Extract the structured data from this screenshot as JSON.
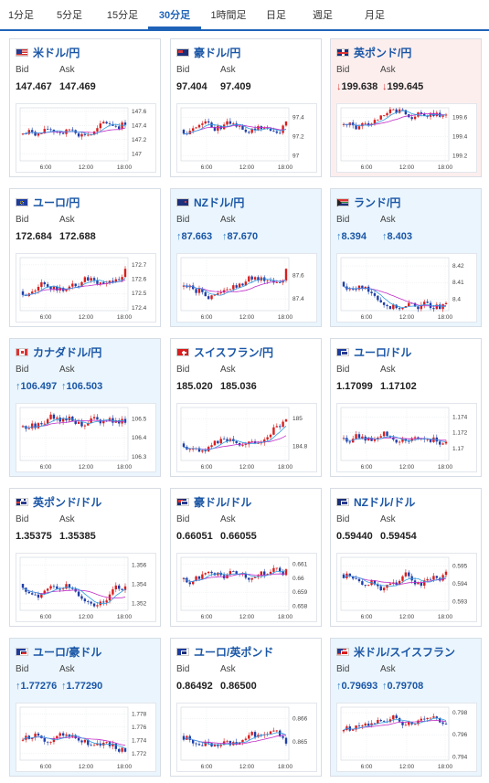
{
  "tabs": [
    "1分足",
    "5分足",
    "15分足",
    "30分足",
    "1時間足",
    "日足",
    "週足",
    "月足"
  ],
  "active_tab": 3,
  "bid_label": "Bid",
  "ask_label": "Ask",
  "x_ticks": [
    "6:00",
    "12:00",
    "18:00"
  ],
  "colors": {
    "up": "#d81e1e",
    "down": "#1f3fa8",
    "ma1": "#c12dc7",
    "ma2": "#2f9be0",
    "tab_active": "#1f63b8"
  },
  "cards": [
    {
      "pair": "米ドル/円",
      "flag": "us",
      "style": "white",
      "bid": "147.467",
      "ask": "147.469",
      "dir": "none",
      "yticks": [
        "147.6",
        "147.4",
        "147.2",
        "147"
      ],
      "ymin": 146.9,
      "ymax": 147.65
    },
    {
      "pair": "豪ドル/円",
      "flag": "au",
      "style": "white",
      "bid": "97.404",
      "ask": "97.409",
      "dir": "none",
      "yticks": [
        "97.4",
        "97.2",
        "97"
      ],
      "ymin": 96.95,
      "ymax": 97.5
    },
    {
      "pair": "英ポンド/円",
      "flag": "uk",
      "style": "pink",
      "bid": "199.638",
      "ask": "199.645",
      "dir": "down",
      "yticks": [
        "199.6",
        "199.4",
        "199.2"
      ],
      "ymin": 199.15,
      "ymax": 199.7
    },
    {
      "pair": "ユーロ/円",
      "flag": "eu",
      "style": "white",
      "bid": "172.684",
      "ask": "172.688",
      "dir": "none",
      "yticks": [
        "172.7",
        "172.6",
        "172.5",
        "172.4"
      ],
      "ymin": 172.38,
      "ymax": 172.75
    },
    {
      "pair": "NZドル/円",
      "flag": "nz",
      "style": "blue",
      "bid": "87.663",
      "ask": "87.670",
      "dir": "up",
      "yticks": [
        "87.6",
        "87.4"
      ],
      "ymin": 87.3,
      "ymax": 87.75
    },
    {
      "pair": "ランド/円",
      "flag": "za",
      "style": "blue",
      "bid": "8.394",
      "ask": "8.403",
      "dir": "up",
      "yticks": [
        "8.42",
        "8.41",
        "8.4"
      ],
      "ymin": 8.393,
      "ymax": 8.425
    },
    {
      "pair": "カナダドル/円",
      "flag": "ca",
      "style": "blue",
      "bid": "106.497",
      "ask": "106.503",
      "dir": "up",
      "yticks": [
        "106.5",
        "106.4",
        "106.3"
      ],
      "ymin": 106.28,
      "ymax": 106.56
    },
    {
      "pair": "スイスフラン/円",
      "flag": "ch",
      "style": "white",
      "bid": "185.020",
      "ask": "185.036",
      "dir": "none",
      "yticks": [
        "185",
        "184.8"
      ],
      "ymin": 184.7,
      "ymax": 185.08
    },
    {
      "pair": "ユーロ/ドル",
      "flag": "euus",
      "style": "white",
      "bid": "1.17099",
      "ask": "1.17102",
      "dir": "none",
      "yticks": [
        "1.174",
        "1.172",
        "1.17"
      ],
      "ymin": 1.1685,
      "ymax": 1.1752
    },
    {
      "pair": "英ポンド/ドル",
      "flag": "ukus",
      "style": "white",
      "bid": "1.35375",
      "ask": "1.35385",
      "dir": "none",
      "yticks": [
        "1.356",
        "1.354",
        "1.352"
      ],
      "ymin": 1.3513,
      "ymax": 1.3568
    },
    {
      "pair": "豪ドル/ドル",
      "flag": "auus",
      "style": "white",
      "bid": "0.66051",
      "ask": "0.66055",
      "dir": "none",
      "yticks": [
        "0.661",
        "0.66",
        "0.659",
        "0.658"
      ],
      "ymin": 0.6577,
      "ymax": 0.6615
    },
    {
      "pair": "NZドル/ドル",
      "flag": "nzus",
      "style": "white",
      "bid": "0.59440",
      "ask": "0.59454",
      "dir": "none",
      "yticks": [
        "0.595",
        "0.594",
        "0.593"
      ],
      "ymin": 0.5925,
      "ymax": 0.5955
    },
    {
      "pair": "ユーロ/豪ドル",
      "flag": "euau",
      "style": "blue",
      "bid": "1.77276",
      "ask": "1.77290",
      "dir": "up",
      "yticks": [
        "1.778",
        "1.776",
        "1.774",
        "1.772"
      ],
      "ymin": 1.771,
      "ymax": 1.779
    },
    {
      "pair": "ユーロ/英ポンド",
      "flag": "euuk",
      "style": "white",
      "bid": "0.86492",
      "ask": "0.86500",
      "dir": "none",
      "yticks": [
        "0.866",
        "0.865"
      ],
      "ymin": 0.8642,
      "ymax": 0.8665
    },
    {
      "pair": "米ドル/スイスフラン",
      "flag": "usch",
      "style": "blue",
      "bid": "0.79693",
      "ask": "0.79708",
      "dir": "up",
      "yticks": [
        "0.798",
        "0.796",
        "0.794"
      ],
      "ymin": 0.7937,
      "ymax": 0.7985
    }
  ]
}
